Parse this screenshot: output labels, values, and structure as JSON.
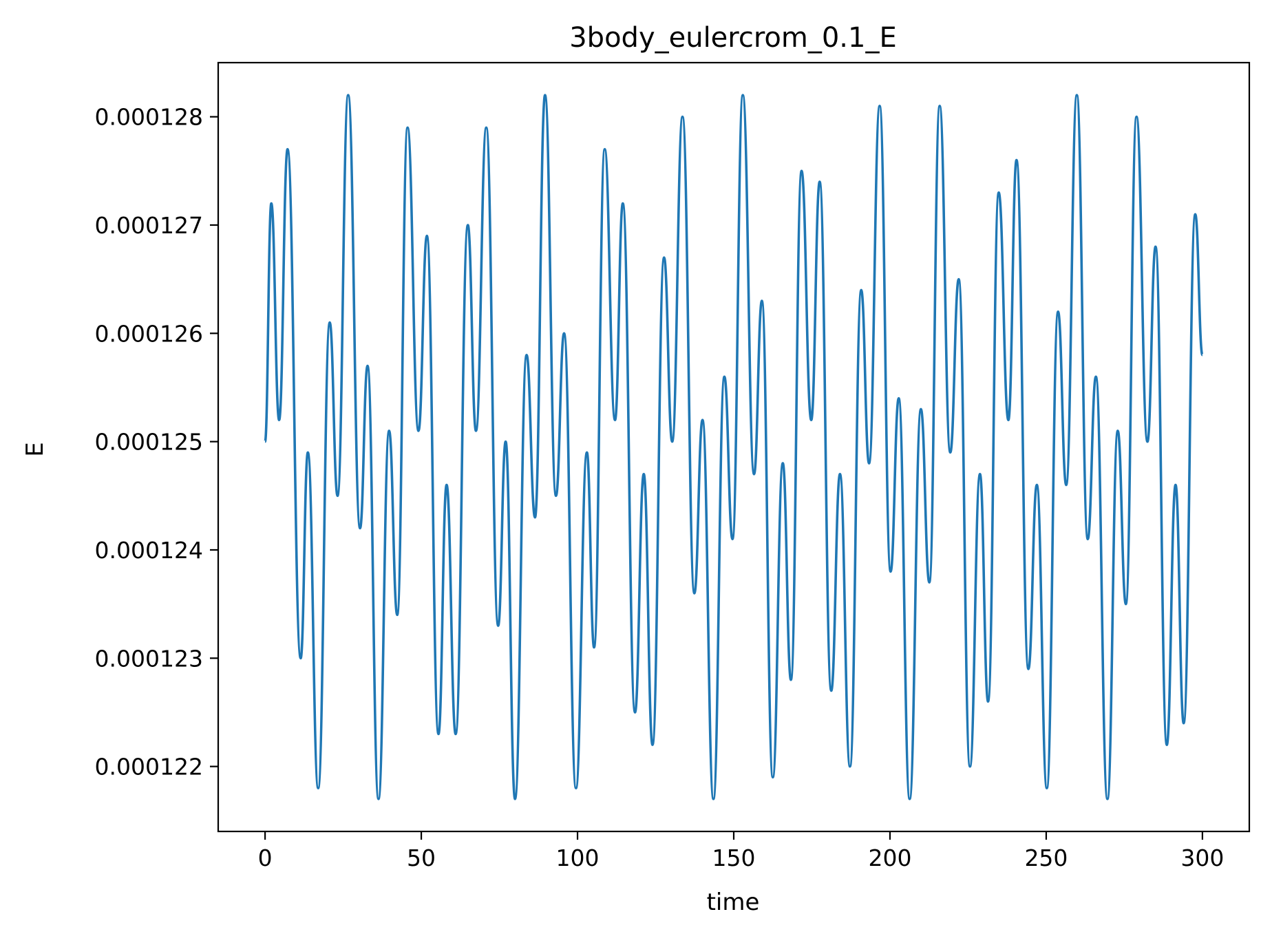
{
  "chart_data": {
    "type": "line",
    "title": "3body_eulercrom_0.1_E",
    "xlabel": "time",
    "ylabel": "E",
    "xlim": [
      -15,
      315
    ],
    "ylim": [
      0.0001214,
      0.0001285
    ],
    "xticks": [
      0,
      50,
      100,
      150,
      200,
      250,
      300
    ],
    "xtick_labels": [
      "0",
      "50",
      "100",
      "150",
      "200",
      "250",
      "300"
    ],
    "yticks": [
      0.000122,
      0.000123,
      0.000124,
      0.000125,
      0.000126,
      0.000127,
      0.000128
    ],
    "ytick_labels": [
      "0.000122",
      "0.000123",
      "0.000124",
      "0.000125",
      "0.000126",
      "0.000127",
      "0.000128"
    ],
    "grid": false,
    "series": [
      {
        "color": "#1f77b4",
        "points": [
          [
            0.0,
            0.000125
          ],
          [
            2.0,
            0.0001272
          ],
          [
            4.5,
            0.0001252
          ],
          [
            7.2,
            0.0001277
          ],
          [
            11.4,
            0.000123
          ],
          [
            13.7,
            0.0001249
          ],
          [
            17.0,
            0.0001218
          ],
          [
            20.7,
            0.0001261
          ],
          [
            23.2,
            0.0001245
          ],
          [
            26.6,
            0.0001282
          ],
          [
            30.4,
            0.0001242
          ],
          [
            32.8,
            0.0001257
          ],
          [
            36.3,
            0.0001217
          ],
          [
            39.7,
            0.0001251
          ],
          [
            42.3,
            0.0001234
          ],
          [
            45.6,
            0.0001279
          ],
          [
            49.1,
            0.0001251
          ],
          [
            51.8,
            0.0001269
          ],
          [
            55.5,
            0.0001223
          ],
          [
            58.1,
            0.0001246
          ],
          [
            61.0,
            0.0001223
          ],
          [
            64.9,
            0.000127
          ],
          [
            67.5,
            0.0001251
          ],
          [
            70.8,
            0.0001279
          ],
          [
            74.6,
            0.0001233
          ],
          [
            77.0,
            0.000125
          ],
          [
            80.0,
            0.0001217
          ],
          [
            83.7,
            0.0001258
          ],
          [
            86.4,
            0.0001243
          ],
          [
            89.6,
            0.0001282
          ],
          [
            93.1,
            0.0001245
          ],
          [
            95.7,
            0.000126
          ],
          [
            99.5,
            0.0001218
          ],
          [
            103.0,
            0.0001249
          ],
          [
            105.3,
            0.0001231
          ],
          [
            108.7,
            0.0001277
          ],
          [
            112.0,
            0.0001252
          ],
          [
            114.5,
            0.0001272
          ],
          [
            118.4,
            0.0001225
          ],
          [
            121.2,
            0.0001247
          ],
          [
            124.0,
            0.0001222
          ],
          [
            127.7,
            0.0001267
          ],
          [
            130.3,
            0.000125
          ],
          [
            133.6,
            0.000128
          ],
          [
            137.4,
            0.0001236
          ],
          [
            140.0,
            0.0001252
          ],
          [
            143.5,
            0.0001217
          ],
          [
            147.0,
            0.0001256
          ],
          [
            149.6,
            0.0001241
          ],
          [
            152.9,
            0.0001282
          ],
          [
            156.5,
            0.0001247
          ],
          [
            159.0,
            0.0001263
          ],
          [
            162.5,
            0.0001219
          ],
          [
            165.7,
            0.0001248
          ],
          [
            168.3,
            0.0001228
          ],
          [
            171.7,
            0.0001275
          ],
          [
            174.8,
            0.0001252
          ],
          [
            177.5,
            0.0001274
          ],
          [
            181.2,
            0.0001227
          ],
          [
            184.0,
            0.0001247
          ],
          [
            187.2,
            0.000122
          ],
          [
            190.8,
            0.0001264
          ],
          [
            193.3,
            0.0001248
          ],
          [
            196.7,
            0.0001281
          ],
          [
            200.2,
            0.0001238
          ],
          [
            202.8,
            0.0001254
          ],
          [
            206.3,
            0.0001217
          ],
          [
            209.9,
            0.0001253
          ],
          [
            212.6,
            0.0001237
          ],
          [
            215.9,
            0.0001281
          ],
          [
            219.3,
            0.0001249
          ],
          [
            222.0,
            0.0001265
          ],
          [
            225.6,
            0.000122
          ],
          [
            228.8,
            0.0001247
          ],
          [
            231.4,
            0.0001226
          ],
          [
            234.8,
            0.0001273
          ],
          [
            237.9,
            0.0001252
          ],
          [
            240.5,
            0.0001276
          ],
          [
            244.3,
            0.0001229
          ],
          [
            247.0,
            0.0001246
          ],
          [
            250.2,
            0.0001218
          ],
          [
            253.8,
            0.0001262
          ],
          [
            256.4,
            0.0001246
          ],
          [
            259.8,
            0.0001282
          ],
          [
            263.3,
            0.0001241
          ],
          [
            265.9,
            0.0001256
          ],
          [
            269.6,
            0.0001217
          ],
          [
            272.9,
            0.0001251
          ],
          [
            275.5,
            0.0001235
          ],
          [
            278.9,
            0.000128
          ],
          [
            282.4,
            0.000125
          ],
          [
            285.0,
            0.0001268
          ],
          [
            288.6,
            0.0001222
          ],
          [
            291.4,
            0.0001246
          ],
          [
            294.0,
            0.0001224
          ],
          [
            297.7,
            0.0001271
          ],
          [
            300.0,
            0.0001258
          ]
        ]
      }
    ]
  }
}
